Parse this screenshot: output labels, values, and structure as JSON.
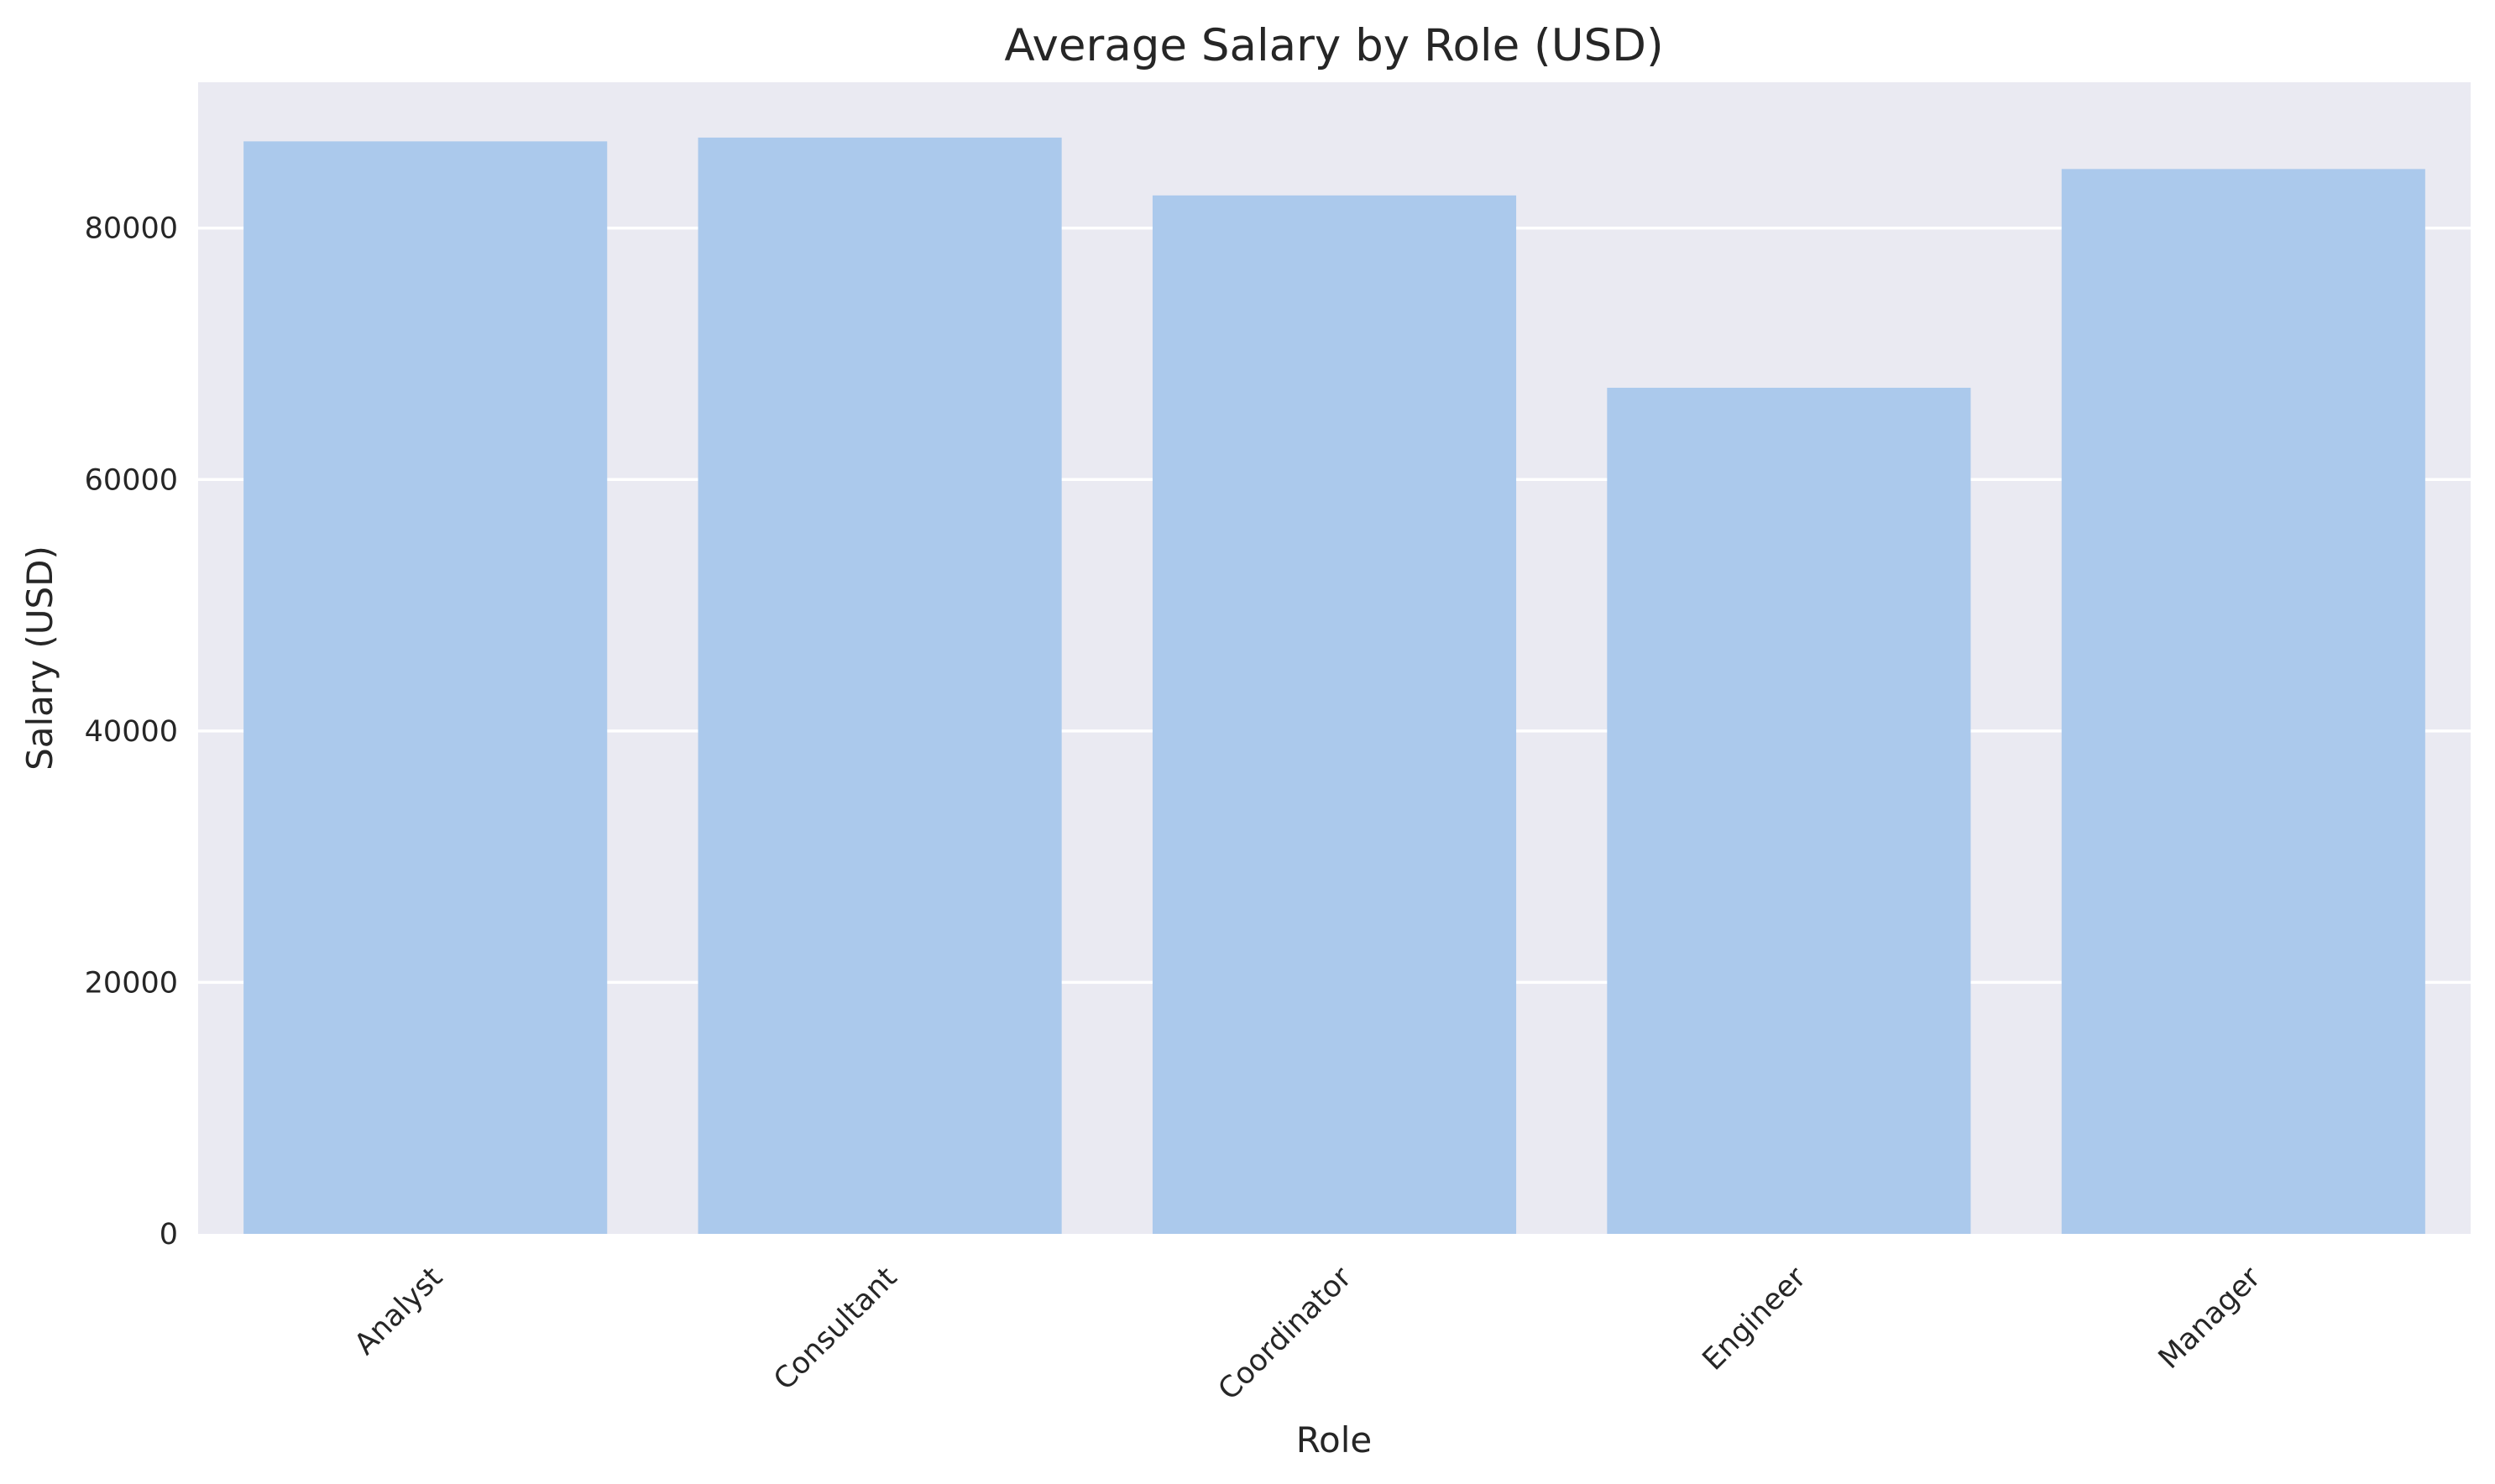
{
  "chart_data": {
    "type": "bar",
    "title": "Average Salary by Role (USD)",
    "xlabel": "Role",
    "ylabel": "Salary (USD)",
    "categories": [
      "Analyst",
      "Consultant",
      "Coordinator",
      "Engineer",
      "Manager"
    ],
    "values": [
      86900,
      87200,
      82600,
      67300,
      84700
    ],
    "ylim": [
      0,
      91600
    ],
    "yticks": [
      0,
      20000,
      40000,
      60000,
      80000
    ],
    "ytick_labels": [
      "0",
      "20000",
      "40000",
      "60000",
      "80000"
    ],
    "grid": true,
    "legend": "none",
    "colors": {
      "bar": "#abc9ec",
      "plot_background": "#eaeaf2",
      "grid": "#ffffff",
      "text": "#262626"
    }
  }
}
